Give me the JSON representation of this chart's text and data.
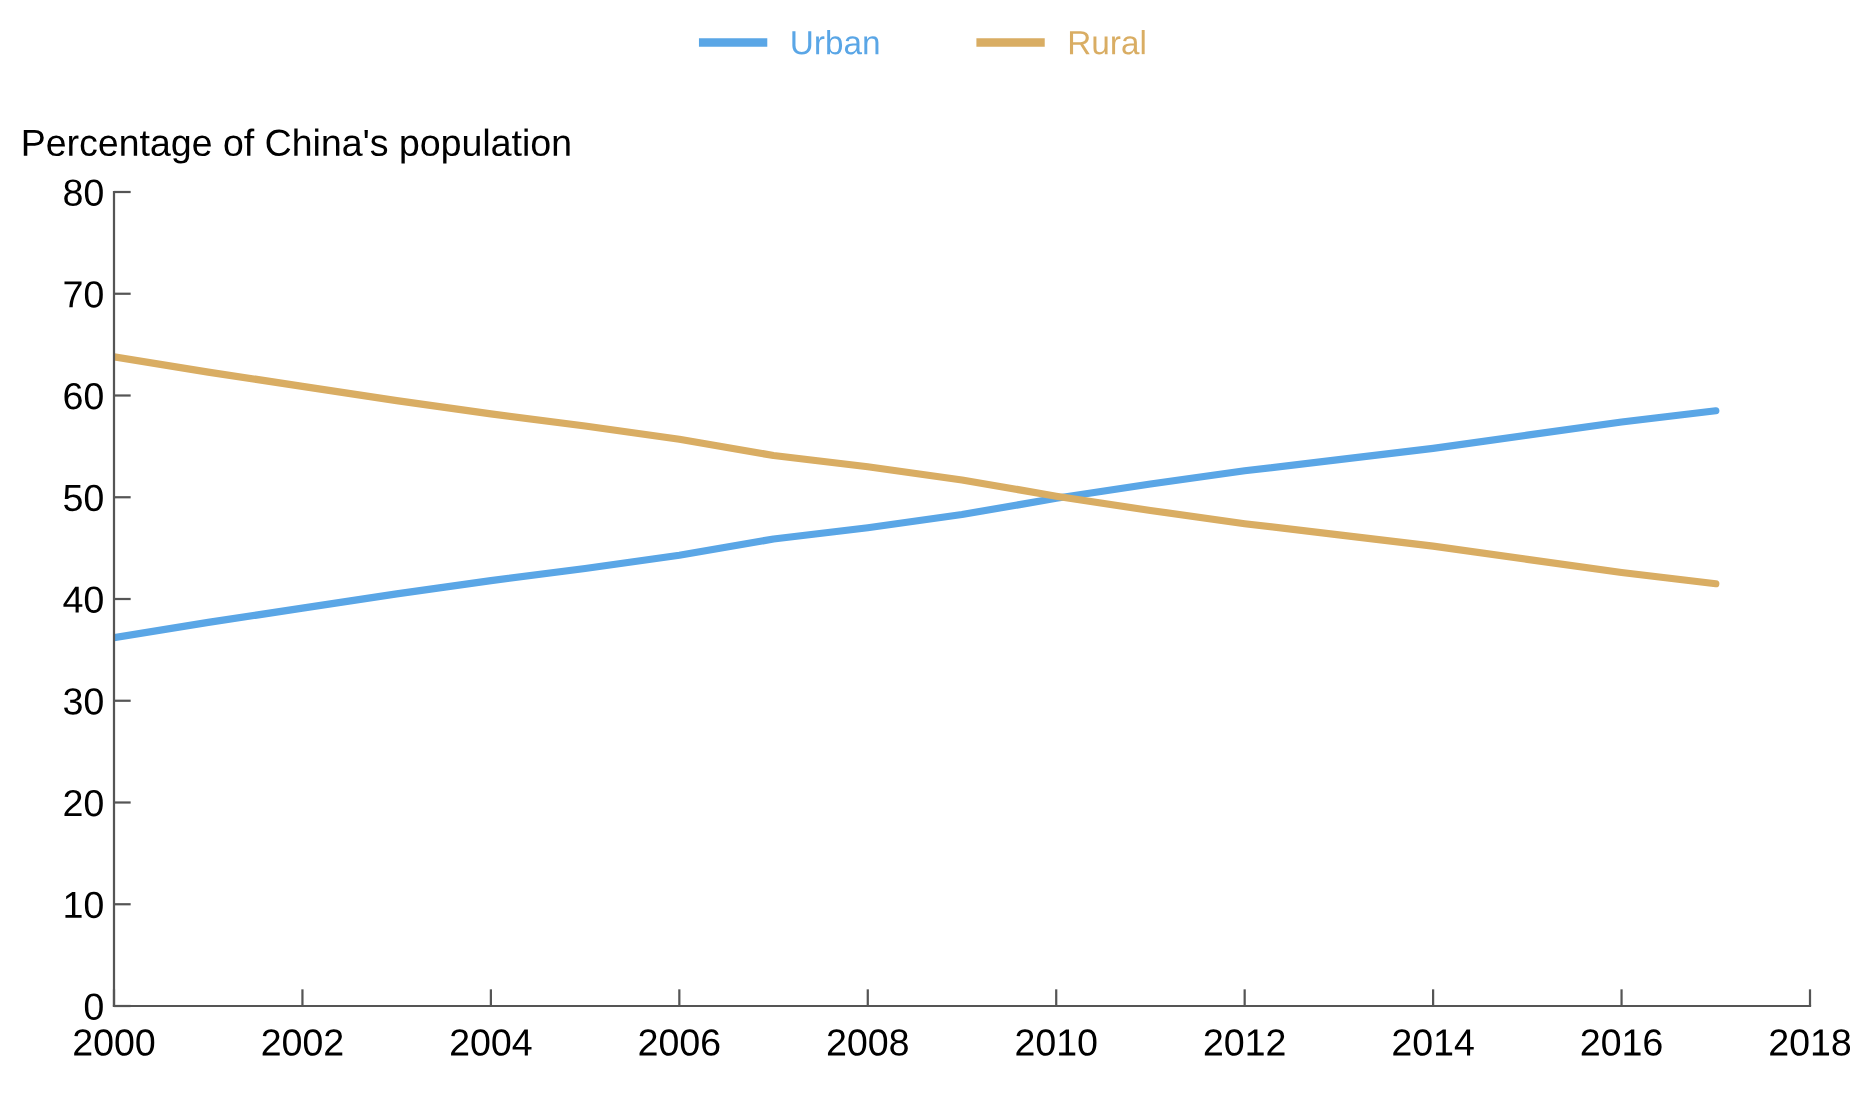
{
  "chart_data": {
    "type": "line",
    "ylabel": "Percentage of China's population",
    "x": [
      2000,
      2001,
      2002,
      2003,
      2004,
      2005,
      2006,
      2007,
      2008,
      2009,
      2010,
      2011,
      2012,
      2013,
      2014,
      2015,
      2016,
      2017
    ],
    "series": [
      {
        "name": "Urban",
        "color": "#5aa6e6",
        "values": [
          36.2,
          37.7,
          39.1,
          40.5,
          41.8,
          43.0,
          44.3,
          45.9,
          47.0,
          48.3,
          49.9,
          51.3,
          52.6,
          53.7,
          54.8,
          56.1,
          57.4,
          58.5
        ]
      },
      {
        "name": "Rural",
        "color": "#d9ad63",
        "values": [
          63.8,
          62.3,
          60.9,
          59.5,
          58.2,
          57.0,
          55.7,
          54.1,
          53.0,
          51.7,
          50.1,
          48.7,
          47.4,
          46.3,
          45.2,
          43.9,
          42.6,
          41.5
        ]
      }
    ],
    "xlim": [
      2000,
      2018
    ],
    "xticks": [
      2000,
      2002,
      2004,
      2006,
      2008,
      2010,
      2012,
      2014,
      2016,
      2018
    ],
    "ylim": [
      0,
      80
    ],
    "yticks": [
      0,
      10,
      20,
      30,
      40,
      50,
      60,
      70,
      80
    ],
    "grid": false,
    "legend": "top",
    "marker": "none",
    "line_style": "solid"
  }
}
